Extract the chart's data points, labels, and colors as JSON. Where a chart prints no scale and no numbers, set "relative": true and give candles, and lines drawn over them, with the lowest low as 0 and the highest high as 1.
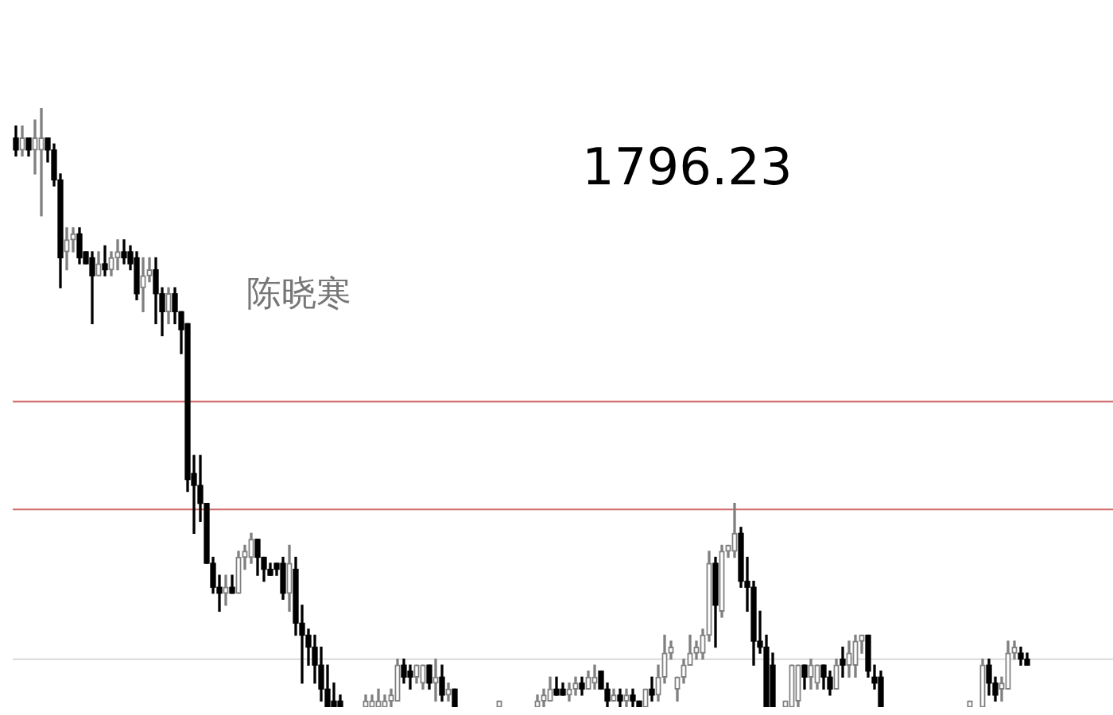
{
  "chart_data": {
    "type": "candlestick",
    "relative": true,
    "colors": [
      "#000000",
      "#808080",
      "#000000",
      "#808080",
      "#808080",
      "#000000",
      "#000000",
      "#000000",
      "#808080",
      "#808080",
      "#000000",
      "#000000",
      "#000000",
      "#808080",
      "#000000",
      "#808080",
      "#808080",
      "#000000",
      "#000000",
      "#000000",
      "#808080",
      "#808080",
      "#000000",
      "#000000",
      "#808080",
      "#000000",
      "#000000",
      "#000000",
      "#000000",
      "#000000",
      "#000000",
      "#000000",
      "#000000",
      "#808080",
      "#000000",
      "#808080",
      "#808080",
      "#808080",
      "#000000",
      "#000000",
      "#000000",
      "#000000",
      "#000000",
      "#808080",
      "#000000",
      "#000000",
      "#000000",
      "#000000",
      "#000000",
      "#000000",
      "#000000",
      "#000000",
      null,
      null,
      null,
      "#808080",
      "#808080",
      "#808080",
      "#808080",
      "#808080",
      "#808080",
      "#000000",
      "#000000",
      "#808080",
      "#808080",
      "#000000",
      "#808080",
      "#000000",
      "#808080",
      "#000000",
      null,
      null,
      null,
      null,
      null,
      null,
      "#808080",
      null,
      null,
      null,
      null,
      null,
      "#808080",
      "#808080",
      "#808080",
      "#000000",
      "#000000",
      "#808080",
      "#808080",
      "#000000",
      "#808080",
      "#808080",
      "#000000",
      "#000000",
      "#808080",
      "#000000",
      "#808080",
      "#000000",
      "#000000",
      "#808080",
      "#000000",
      "#808080",
      "#808080",
      "#808080",
      "#808080",
      "#808080",
      "#808080",
      "#808080",
      "#808080",
      "#808080",
      "#000000",
      "#808080",
      "#808080",
      "#808080",
      "#000000",
      "#000000",
      "#000000",
      "#000000",
      "#000000",
      "#000000",
      null,
      "#808080",
      "#808080",
      "#808080",
      "#000000",
      "#808080",
      "#808080",
      "#000000",
      "#000000",
      "#808080",
      "#000000",
      "#808080",
      "#808080",
      "#808080",
      "#000000",
      "#000000",
      "#000000",
      null,
      null,
      null,
      null,
      null,
      null,
      null,
      null,
      null,
      null,
      null,
      null,
      null,
      "#808080",
      null,
      "#808080",
      "#000000",
      "#000000",
      "#808080",
      "#808080",
      "#808080",
      "#000000",
      "#000000"
    ],
    "categories": [
      null,
      null,
      null,
      null,
      null,
      null,
      null,
      null,
      null,
      null,
      null,
      null,
      null,
      null,
      null,
      null,
      null,
      null,
      null,
      null,
      null,
      null,
      null,
      null,
      null,
      null,
      null,
      null,
      null,
      null,
      null,
      null,
      null,
      null,
      null,
      null,
      null,
      null,
      null,
      null,
      null,
      null,
      null,
      null,
      null,
      null,
      null,
      null,
      null,
      null,
      null,
      null,
      null,
      null,
      null,
      null,
      null,
      null,
      null,
      null,
      null,
      null,
      null,
      null,
      null,
      null,
      null,
      null,
      null,
      null,
      null,
      null,
      null,
      null,
      null,
      null,
      null,
      null,
      null,
      null,
      null,
      null,
      null,
      null,
      null,
      null,
      null,
      null,
      null,
      null,
      null,
      null,
      null,
      null,
      null,
      null,
      null,
      null,
      null,
      null,
      null,
      null,
      null,
      null,
      null,
      null,
      null,
      null,
      null,
      null,
      null,
      null,
      null,
      null,
      null,
      null,
      null,
      null,
      null,
      null,
      null,
      null,
      null,
      null,
      null,
      null,
      null,
      null,
      null,
      null,
      null,
      null,
      null,
      null,
      null,
      null,
      null,
      null,
      null,
      null,
      null,
      null,
      null,
      null,
      null,
      null,
      null,
      null,
      null,
      null,
      null,
      null,
      null,
      null,
      null,
      null,
      null,
      null,
      null,
      null
    ],
    "ohlc": [
      [
        0.95,
        0.97,
        0.92,
        0.93
      ],
      [
        0.93,
        0.97,
        0.92,
        0.95
      ],
      [
        0.95,
        0.95,
        0.92,
        0.93
      ],
      [
        0.93,
        0.98,
        0.89,
        0.95
      ],
      [
        0.93,
        1.0,
        0.82,
        0.95
      ],
      [
        0.95,
        0.95,
        0.91,
        0.93
      ],
      [
        0.93,
        0.94,
        0.87,
        0.88
      ],
      [
        0.88,
        0.89,
        0.7,
        0.75
      ],
      [
        0.76,
        0.8,
        0.73,
        0.78
      ],
      [
        0.78,
        0.8,
        0.76,
        0.79
      ],
      [
        0.79,
        0.8,
        0.74,
        0.75
      ],
      [
        0.76,
        0.76,
        0.74,
        0.74
      ],
      [
        0.75,
        0.76,
        0.64,
        0.72
      ],
      [
        0.72,
        0.76,
        0.72,
        0.74
      ],
      [
        0.74,
        0.77,
        0.72,
        0.73
      ],
      [
        0.73,
        0.76,
        0.72,
        0.75
      ],
      [
        0.75,
        0.78,
        0.73,
        0.76
      ],
      [
        0.76,
        0.78,
        0.74,
        0.75
      ],
      [
        0.76,
        0.77,
        0.73,
        0.74
      ],
      [
        0.75,
        0.76,
        0.68,
        0.69
      ],
      [
        0.7,
        0.75,
        0.66,
        0.72
      ],
      [
        0.72,
        0.75,
        0.71,
        0.73
      ],
      [
        0.73,
        0.75,
        0.64,
        0.69
      ],
      [
        0.69,
        0.7,
        0.62,
        0.66
      ],
      [
        0.66,
        0.7,
        0.64,
        0.69
      ],
      [
        0.69,
        0.7,
        0.64,
        0.66
      ],
      [
        0.66,
        0.66,
        0.59,
        0.63
      ],
      [
        0.64,
        0.64,
        0.36,
        0.38
      ],
      [
        0.39,
        0.42,
        0.29,
        0.37
      ],
      [
        0.37,
        0.42,
        0.31,
        0.34
      ],
      [
        0.34,
        0.34,
        0.24,
        0.24
      ],
      [
        0.24,
        0.25,
        0.19,
        0.2
      ],
      [
        0.2,
        0.22,
        0.16,
        0.19
      ],
      [
        0.19,
        0.22,
        0.17,
        0.2
      ],
      [
        0.2,
        0.22,
        0.19,
        0.19
      ],
      [
        0.19,
        0.26,
        0.19,
        0.25
      ],
      [
        0.25,
        0.27,
        0.23,
        0.26
      ],
      [
        0.25,
        0.29,
        0.24,
        0.28
      ],
      [
        0.28,
        0.28,
        0.22,
        0.25
      ],
      [
        0.25,
        0.25,
        0.21,
        0.23
      ],
      [
        0.23,
        0.24,
        0.22,
        0.22
      ],
      [
        0.24,
        0.24,
        0.22,
        0.23
      ],
      [
        0.24,
        0.25,
        0.18,
        0.19
      ],
      [
        0.19,
        0.27,
        0.16,
        0.24
      ],
      [
        0.23,
        0.25,
        0.12,
        0.14
      ],
      [
        0.14,
        0.17,
        0.04,
        0.12
      ],
      [
        0.12,
        0.13,
        0.07,
        0.1
      ],
      [
        0.1,
        0.12,
        0.04,
        0.07
      ],
      [
        0.07,
        0.1,
        0.01,
        0.03
      ],
      [
        0.03,
        0.07,
        0,
        0
      ],
      [
        0.01,
        0.04,
        0,
        0
      ],
      [
        0.01,
        0.02,
        0,
        0
      ],
      null,
      null,
      null,
      [
        0,
        0.02,
        0,
        0.01
      ],
      [
        0,
        0.02,
        0,
        0.01
      ],
      [
        0,
        0.03,
        0,
        0.01
      ],
      [
        0,
        0.02,
        0,
        0.01
      ],
      [
        0.01,
        0.03,
        0,
        0.02
      ],
      [
        0.01,
        0.08,
        0.01,
        0.07
      ],
      [
        0.07,
        0.08,
        0.04,
        0.05
      ],
      [
        0.06,
        0.07,
        0.03,
        0.05
      ],
      [
        0.05,
        0.07,
        0.04,
        0.07
      ],
      [
        0.04,
        0.07,
        0.03,
        0.07
      ],
      [
        0.07,
        0.07,
        0.03,
        0.04
      ],
      [
        0.04,
        0.08,
        0.01,
        0.05
      ],
      [
        0.05,
        0.07,
        0.01,
        0.02
      ],
      [
        0.02,
        0.04,
        0.01,
        0.03
      ],
      [
        0.03,
        0.03,
        0,
        0
      ],
      null,
      null,
      null,
      null,
      null,
      null,
      [
        0,
        0.01,
        0,
        0.01
      ],
      null,
      null,
      null,
      null,
      null,
      [
        0,
        0.02,
        0,
        0.01
      ],
      [
        0.01,
        0.03,
        0,
        0.02
      ],
      [
        0.01,
        0.05,
        0.01,
        0.03
      ],
      [
        0.03,
        0.05,
        0.02,
        0.02
      ],
      [
        0.03,
        0.04,
        0.02,
        0.02
      ],
      [
        0.02,
        0.04,
        0.01,
        0.03
      ],
      [
        0.03,
        0.05,
        0.02,
        0.04
      ],
      [
        0.04,
        0.05,
        0.02,
        0.03
      ],
      [
        0.03,
        0.06,
        0.03,
        0.05
      ],
      [
        0.04,
        0.07,
        0.03,
        0.05
      ],
      [
        0.06,
        0.06,
        0.03,
        0.03
      ],
      [
        0.03,
        0.04,
        0,
        0.01
      ],
      [
        0.01,
        0.03,
        0.01,
        0.02
      ],
      [
        0.02,
        0.03,
        0,
        0.01
      ],
      [
        0.01,
        0.03,
        0,
        0.02
      ],
      [
        0.02,
        0.03,
        0,
        0.01
      ],
      [
        0.01,
        0.01,
        0,
        0
      ],
      [
        0,
        0.03,
        0,
        0.03
      ],
      [
        0.03,
        0.05,
        0.01,
        0.02
      ],
      [
        0.02,
        0.07,
        0.01,
        0.05
      ],
      [
        0.05,
        0.12,
        0.04,
        0.09
      ],
      [
        0.09,
        0.11,
        0.08,
        0.1
      ],
      [
        0.03,
        0.05,
        0.01,
        0.05
      ],
      [
        0.05,
        0.08,
        0.04,
        0.07
      ],
      [
        0.07,
        0.12,
        0.07,
        0.09
      ],
      [
        0.09,
        0.11,
        0.08,
        0.1
      ],
      [
        0.09,
        0.13,
        0.08,
        0.12
      ],
      [
        0.12,
        0.26,
        0.11,
        0.24
      ],
      [
        0.24,
        0.25,
        0.1,
        0.17
      ],
      [
        0.16,
        0.27,
        0.15,
        0.26
      ],
      [
        0.26,
        0.27,
        0.25,
        0.27
      ],
      [
        0.26,
        0.34,
        0.25,
        0.29
      ],
      [
        0.29,
        0.3,
        0.2,
        0.21
      ],
      [
        0.21,
        0.25,
        0.16,
        0.2
      ],
      [
        0.2,
        0.21,
        0.07,
        0.11
      ],
      [
        0.11,
        0.16,
        0.09,
        0.1
      ],
      [
        0.1,
        0.12,
        0,
        0
      ],
      [
        0.07,
        0.09,
        0,
        0
      ],
      null,
      [
        0,
        0.01,
        0,
        0.01
      ],
      [
        0,
        0.07,
        0,
        0.07
      ],
      [
        0.01,
        0.07,
        0,
        0.07
      ],
      [
        0.07,
        0.07,
        0.03,
        0.05
      ],
      [
        0.05,
        0.08,
        0.03,
        0.07
      ],
      [
        0.04,
        0.07,
        0.03,
        0.07
      ],
      [
        0.07,
        0.07,
        0.03,
        0.05
      ],
      [
        0.05,
        0.06,
        0.02,
        0.03
      ],
      [
        0.03,
        0.08,
        0.03,
        0.07
      ],
      [
        0.08,
        0.1,
        0.05,
        0.07
      ],
      [
        0.07,
        0.11,
        0.05,
        0.09
      ],
      [
        0.07,
        0.12,
        0.05,
        0.11
      ],
      [
        0.11,
        0.12,
        0.09,
        0.12
      ],
      [
        0.12,
        0.12,
        0.05,
        0.06
      ],
      [
        0.05,
        0.07,
        0.03,
        0.04
      ],
      [
        0.05,
        0.06,
        0,
        0
      ],
      null,
      null,
      null,
      null,
      null,
      null,
      null,
      null,
      null,
      null,
      null,
      null,
      null,
      [
        0,
        0.01,
        0,
        0.01
      ],
      null,
      [
        0,
        0.08,
        0,
        0.07
      ],
      [
        0.07,
        0.08,
        0.02,
        0.04
      ],
      [
        0.04,
        0.05,
        0.01,
        0.02
      ],
      [
        0.03,
        0.05,
        0.01,
        0.04
      ],
      [
        0.03,
        0.11,
        0.03,
        0.09
      ],
      [
        0.09,
        0.11,
        0.08,
        0.1
      ],
      [
        0.09,
        0.1,
        0.07,
        0.08
      ],
      [
        0.08,
        0.09,
        0.07,
        0.07
      ]
    ],
    "ref_lines": [
      {
        "axis": "y",
        "value": 0.51,
        "color": "#d06a6a"
      },
      {
        "axis": "y",
        "value": 0.33,
        "color": "#d06a6a"
      },
      {
        "axis": "y",
        "value": 0.08,
        "color": "#d9d9d9"
      }
    ],
    "annotations": [
      "1796.23",
      "陈晓寒"
    ]
  }
}
